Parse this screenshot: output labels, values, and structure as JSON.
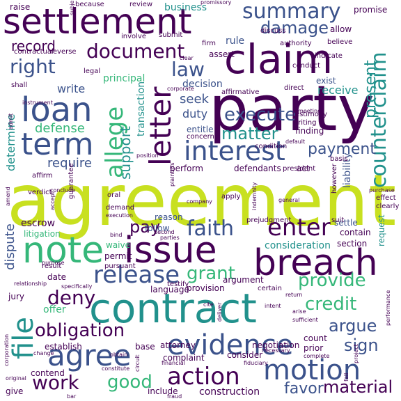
{
  "palette": {
    "dark_purple": "#440154",
    "indigo": "#3b528b",
    "teal": "#21918c",
    "green": "#35b779",
    "yellow": "#c8e020"
  },
  "words": {
    "agreement": "agreement",
    "party": "party",
    "contract": "contract",
    "claim": "claim",
    "settlement": "settlement",
    "issue": "issue",
    "note": "note",
    "breach": "breach",
    "letter": "letter",
    "evidence": "evidence",
    "motion": "motion",
    "loan": "loan",
    "term": "term",
    "allege": "allege",
    "interest": "interest",
    "counterclaim": "counterclaim",
    "summary": "summary",
    "document": "document",
    "faith": "faith",
    "enter": "enter",
    "release": "release",
    "agree": "agree",
    "file": "file",
    "action": "action",
    "right": "right",
    "damage": "damage",
    "record": "record",
    "law": "law",
    "execute": "execute",
    "grant": "grant",
    "provide": "provide",
    "credit": "credit",
    "argue": "argue",
    "sign": "sign",
    "obligation": "obligation",
    "deny": "deny",
    "work": "work",
    "good": "good",
    "material": "material",
    "favor": "favor",
    "payment": "payment",
    "matter": "matter",
    "present": "present",
    "support": "support",
    "defense": "defense",
    "determine": "determine",
    "require": "require",
    "pay": "pay",
    "dispute": "dispute",
    "consideration": "consideration",
    "principal": "principal",
    "write": "write",
    "seek": "seek",
    "duty": "duty",
    "rule": "rule",
    "raise": "raise",
    "business": "business",
    "review": "review",
    "because": "because",
    "promise": "promise",
    "allow": "allow",
    "guaranty": "guaranty",
    "authority": "authority",
    "believe": "believe",
    "assert": "assert",
    "firm": "firm",
    "decision": "decision",
    "affirmative": "affirmative",
    "exist": "exist",
    "receive": "receive",
    "transaction": "transaction",
    "entitle": "entitle",
    "concern": "concern",
    "finding": "finding",
    "affirm": "affirm",
    "perform": "perform",
    "defendants": "defendants",
    "act": "act",
    "liability": "liability",
    "settle": "settle",
    "contain": "contain",
    "section": "section",
    "request": "request",
    "argument": "argument",
    "provision": "provision",
    "escrow": "escrow",
    "litigation": "litigation",
    "follow": "follow",
    "waive": "waive",
    "reason": "reason",
    "permit": "permit",
    "result": "result",
    "date": "date",
    "jury": "jury",
    "offer": "offer",
    "language": "language",
    "testify": "testify",
    "establish": "establish",
    "attorney": "attorney",
    "negotiation": "negotiation",
    "base": "base",
    "complaint": "complaint",
    "consider": "consider",
    "count": "count",
    "prior": "prior",
    "contend": "contend",
    "include": "include",
    "construction": "construction",
    "give": "give",
    "verdict": "verdict",
    "pursuant": "pursuant",
    "oral": "oral",
    "demand": "demand",
    "apply": "apply",
    "guarantee": "guarantee",
    "certain": "certain",
    "basis": "basis",
    "prejudgment": "prejudgment",
    "however": "however",
    "clearly": "clearly",
    "suit": "suit",
    "effect": "effect",
    "president": "president",
    "condition": "condition",
    "writing": "writing",
    "testimony": "testimony",
    "direct": "direct",
    "record_small": "record",
    "conduct": "conduct",
    "indicate": "indicate",
    "discuss": "discuss",
    "submit": "submit",
    "involve": "involve",
    "contractual": "contractual",
    "reverse": "reverse",
    "legal": "legal",
    "shall": "shall",
    "instrument": "instrument",
    "corporate": "corporate",
    "position": "position",
    "company": "company",
    "general": "general",
    "indemnity": "indemnity",
    "purchase": "purchase",
    "default": "default",
    "execution": "execution",
    "second": "second",
    "parties": "parties",
    "bind": "bind",
    "plaintiffs": "plaintiffs",
    "conclude": "conclude",
    "accept": "accept",
    "amend": "amend",
    "admit": "admit",
    "relationship": "relationship",
    "purpose": "purpose",
    "specifically": "specifically",
    "change": "change",
    "corporation": "corporation",
    "original": "original",
    "circuit": "circuit",
    "obtain": "obtain",
    "constitute": "constitute",
    "financial": "financial",
    "fraud": "fraud",
    "fiduciary": "fiduciary",
    "complete": "complete",
    "necessary": "necessary",
    "deliver": "deliver",
    "cite": "cite",
    "intent": "intent",
    "section_return": "return",
    "arise": "arise",
    "sufficient": "sufficient",
    "project": "project",
    "fail": "fail",
    "performance": "performance",
    "bar": "bar",
    "promissory": "promissory",
    "subject": "subject",
    "meeting": "meeting",
    "clear": "clear"
  }
}
